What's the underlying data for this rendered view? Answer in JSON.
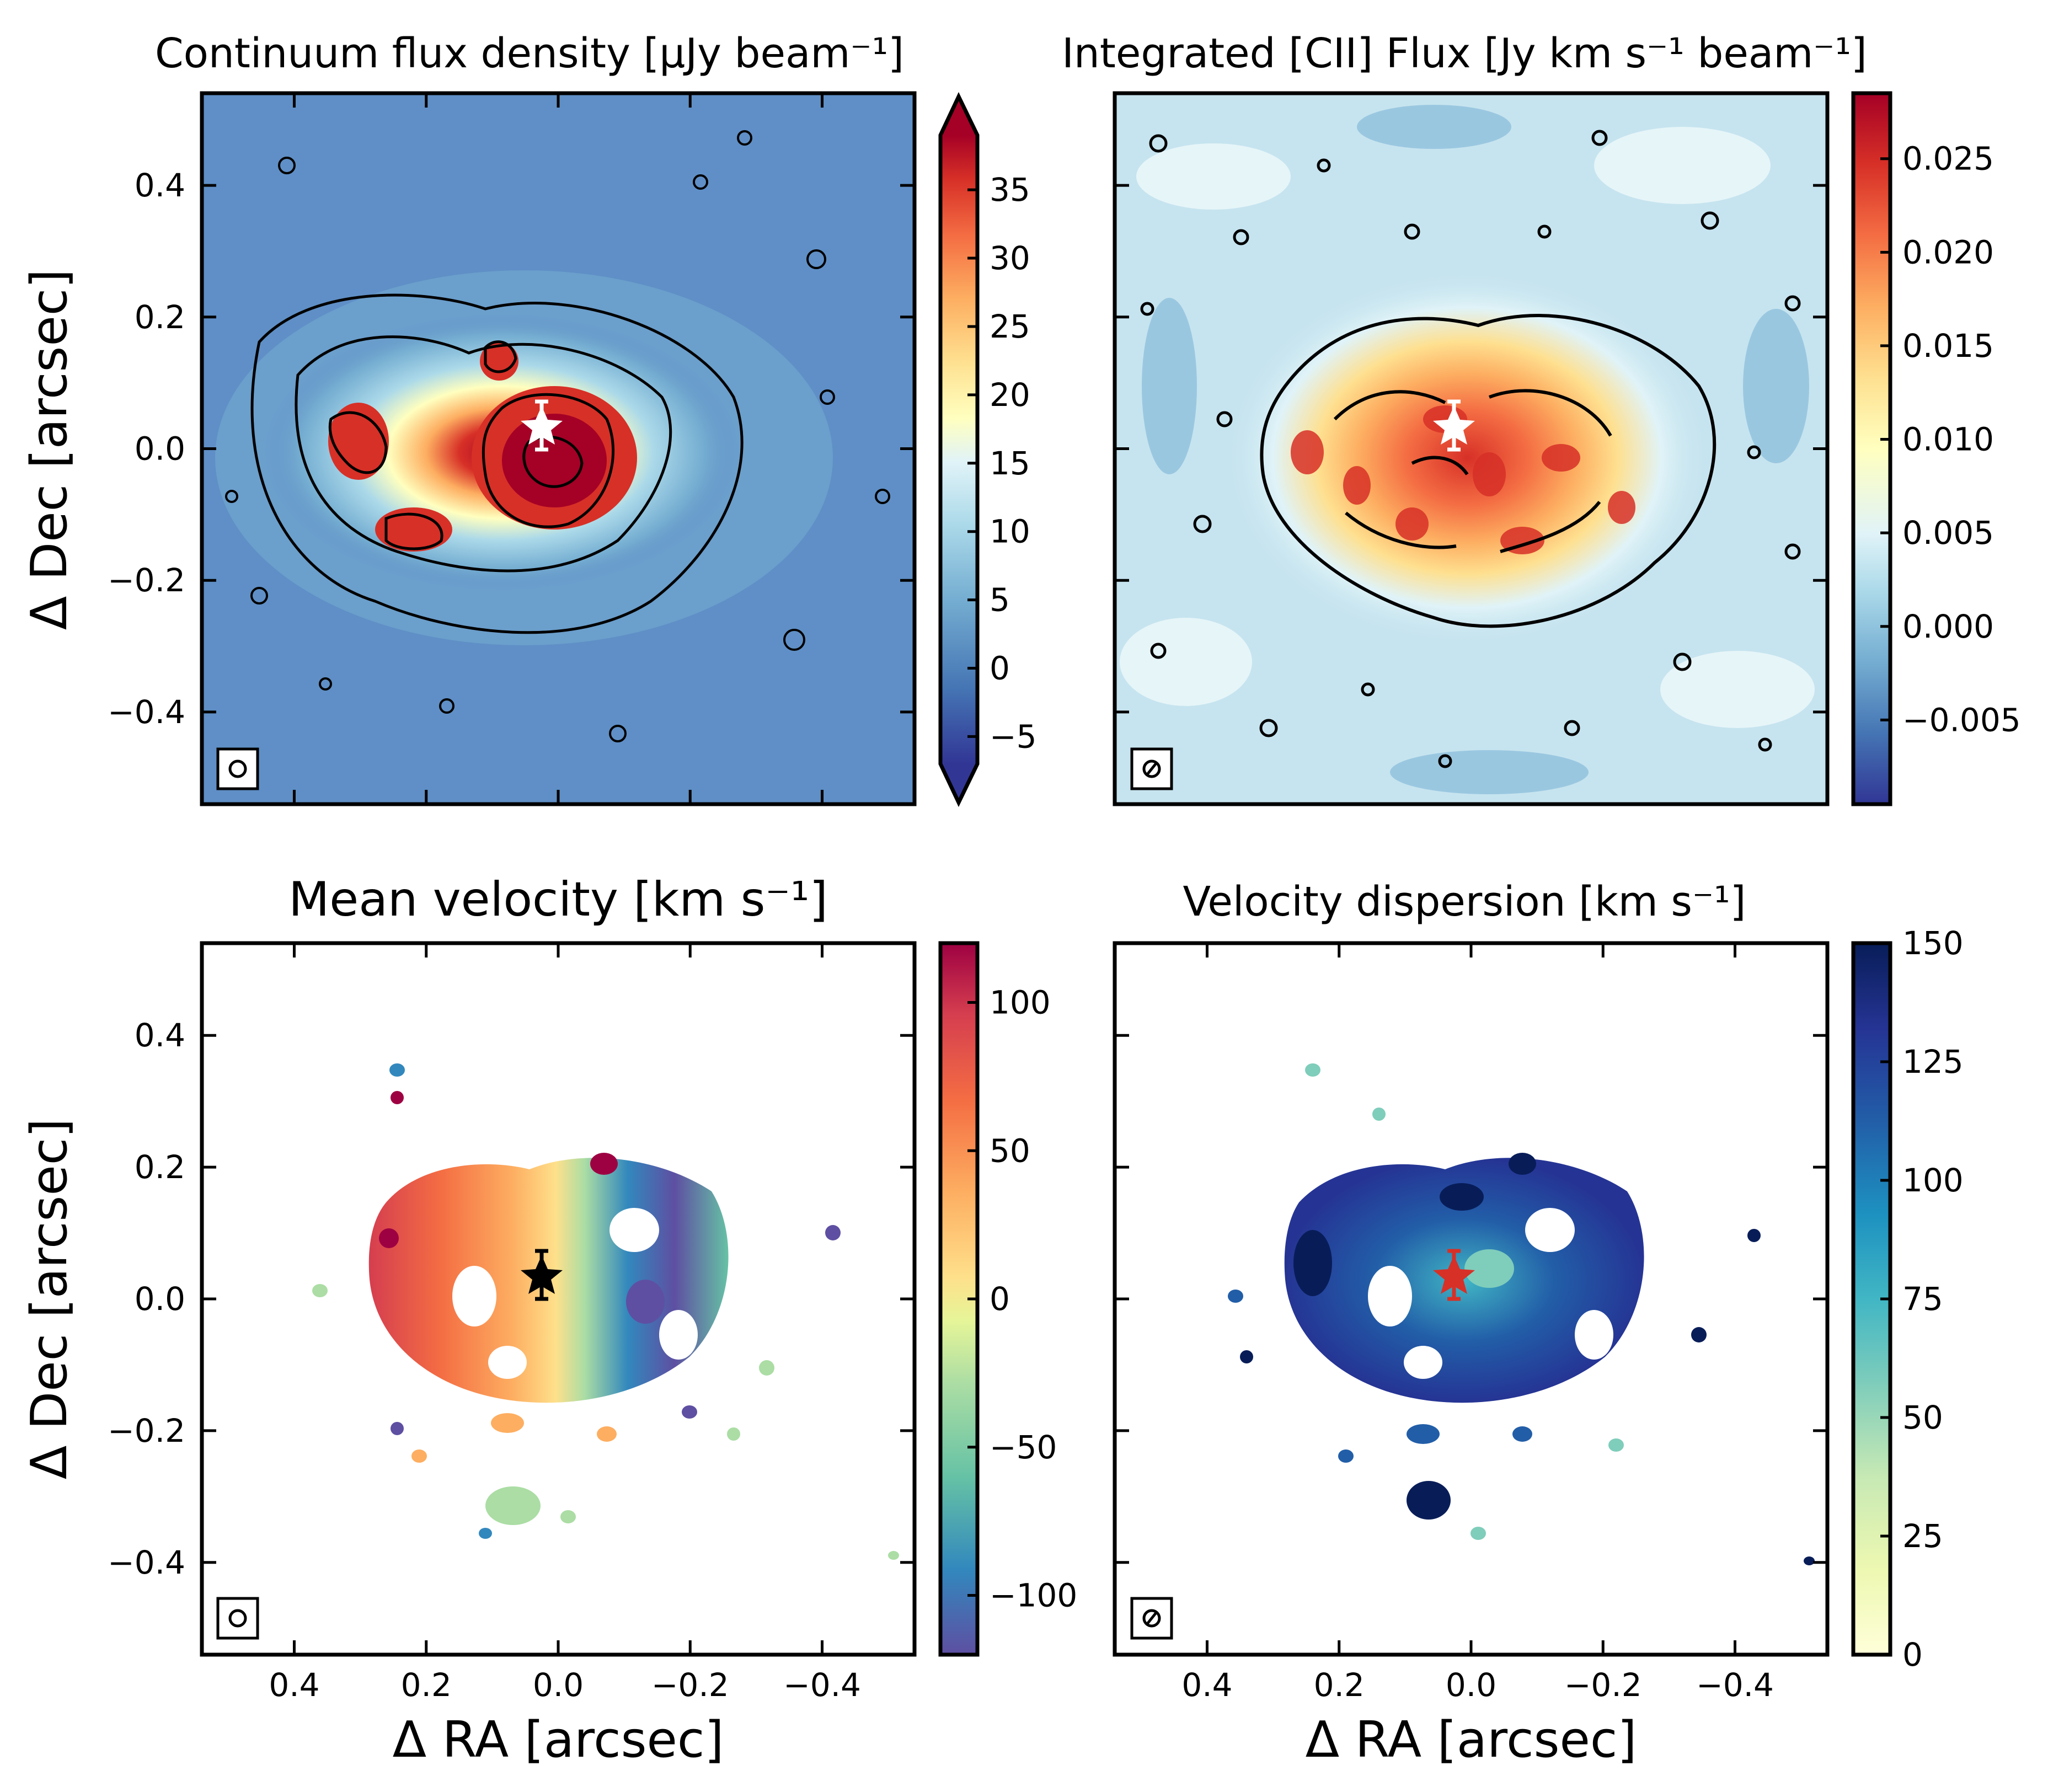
{
  "chart_data": [
    {
      "type": "heatmap",
      "title": "Continuum flux density [μJy beam⁻¹]",
      "ylabel": "Δ Dec [arcsec]",
      "xlabel": "",
      "xlim": [
        0.54,
        -0.54
      ],
      "ylim": [
        -0.54,
        0.54
      ],
      "yticks": [
        "0.4",
        "0.2",
        "0.0",
        "−0.2",
        "−0.4"
      ],
      "ytick_values": [
        0.4,
        0.2,
        0.0,
        -0.2,
        -0.4
      ],
      "xtick_values": [
        0.4,
        0.2,
        0.0,
        -0.2,
        -0.4
      ],
      "colorbar": {
        "range": [
          -7,
          39
        ],
        "ticks": [
          "35",
          "30",
          "25",
          "20",
          "15",
          "10",
          "5",
          "0",
          "−5"
        ],
        "tick_values": [
          35,
          30,
          25,
          20,
          15,
          10,
          5,
          0,
          -5
        ],
        "extend": "both",
        "colormap": "RdYlBu_r"
      },
      "marker": {
        "x": 0.02,
        "y": 0.035,
        "yerr": 0.035,
        "symbol": "star",
        "color": "#ffffff"
      },
      "beam": "circle",
      "contours": true
    },
    {
      "type": "heatmap",
      "title": "Integrated [CII] Flux [Jy km s⁻¹ beam⁻¹]",
      "xlim": [
        0.54,
        -0.54
      ],
      "ylim": [
        -0.54,
        0.54
      ],
      "colorbar": {
        "range": [
          -0.0095,
          0.0285
        ],
        "ticks": [
          "0.025",
          "0.020",
          "0.015",
          "0.010",
          "0.005",
          "0.000",
          "−0.005"
        ],
        "tick_values": [
          0.025,
          0.02,
          0.015,
          0.01,
          0.005,
          0.0,
          -0.005
        ],
        "extend": "neither",
        "colormap": "RdYlBu_r"
      },
      "marker": {
        "x": 0.02,
        "y": 0.035,
        "yerr": 0.035,
        "symbol": "star",
        "color": "#ffffff"
      },
      "beam": "ellipse",
      "contours": true
    },
    {
      "type": "heatmap",
      "title": "Mean velocity [km s⁻¹]",
      "ylabel": "Δ Dec [arcsec]",
      "xlabel": "Δ RA [arcsec]",
      "xlim": [
        0.54,
        -0.54
      ],
      "ylim": [
        -0.54,
        0.54
      ],
      "xticks": [
        "0.4",
        "0.2",
        "0.0",
        "−0.2",
        "−0.4"
      ],
      "xtick_values": [
        0.4,
        0.2,
        0.0,
        -0.2,
        -0.4
      ],
      "yticks": [
        "0.4",
        "0.2",
        "0.0",
        "−0.2",
        "−0.4"
      ],
      "ytick_values": [
        0.4,
        0.2,
        0.0,
        -0.2,
        -0.4
      ],
      "colorbar": {
        "range": [
          -120,
          120
        ],
        "ticks": [
          "100",
          "50",
          "0",
          "−50",
          "−100"
        ],
        "tick_values": [
          100,
          50,
          0,
          -50,
          -100
        ],
        "extend": "neither",
        "colormap": "Spectral_r"
      },
      "marker": {
        "x": 0.02,
        "y": 0.035,
        "yerr": 0.035,
        "symbol": "star",
        "color": "#000000"
      },
      "beam": "circle"
    },
    {
      "type": "heatmap",
      "title": "Velocity dispersion [km s⁻¹]",
      "xlabel": "Δ RA [arcsec]",
      "xlim": [
        0.54,
        -0.54
      ],
      "ylim": [
        -0.54,
        0.54
      ],
      "xticks": [
        "0.4",
        "0.2",
        "0.0",
        "−0.2",
        "−0.4"
      ],
      "xtick_values": [
        0.4,
        0.2,
        0.0,
        -0.2,
        -0.4
      ],
      "colorbar": {
        "range": [
          0,
          150
        ],
        "ticks": [
          "150",
          "125",
          "100",
          "75",
          "50",
          "25",
          "0"
        ],
        "tick_values": [
          150,
          125,
          100,
          75,
          50,
          25,
          0
        ],
        "extend": "neither",
        "colormap": "YlGnBu"
      },
      "marker": {
        "x": 0.02,
        "y": 0.035,
        "yerr": 0.035,
        "symbol": "star",
        "color": "#d73027"
      },
      "beam": "ellipse"
    }
  ]
}
